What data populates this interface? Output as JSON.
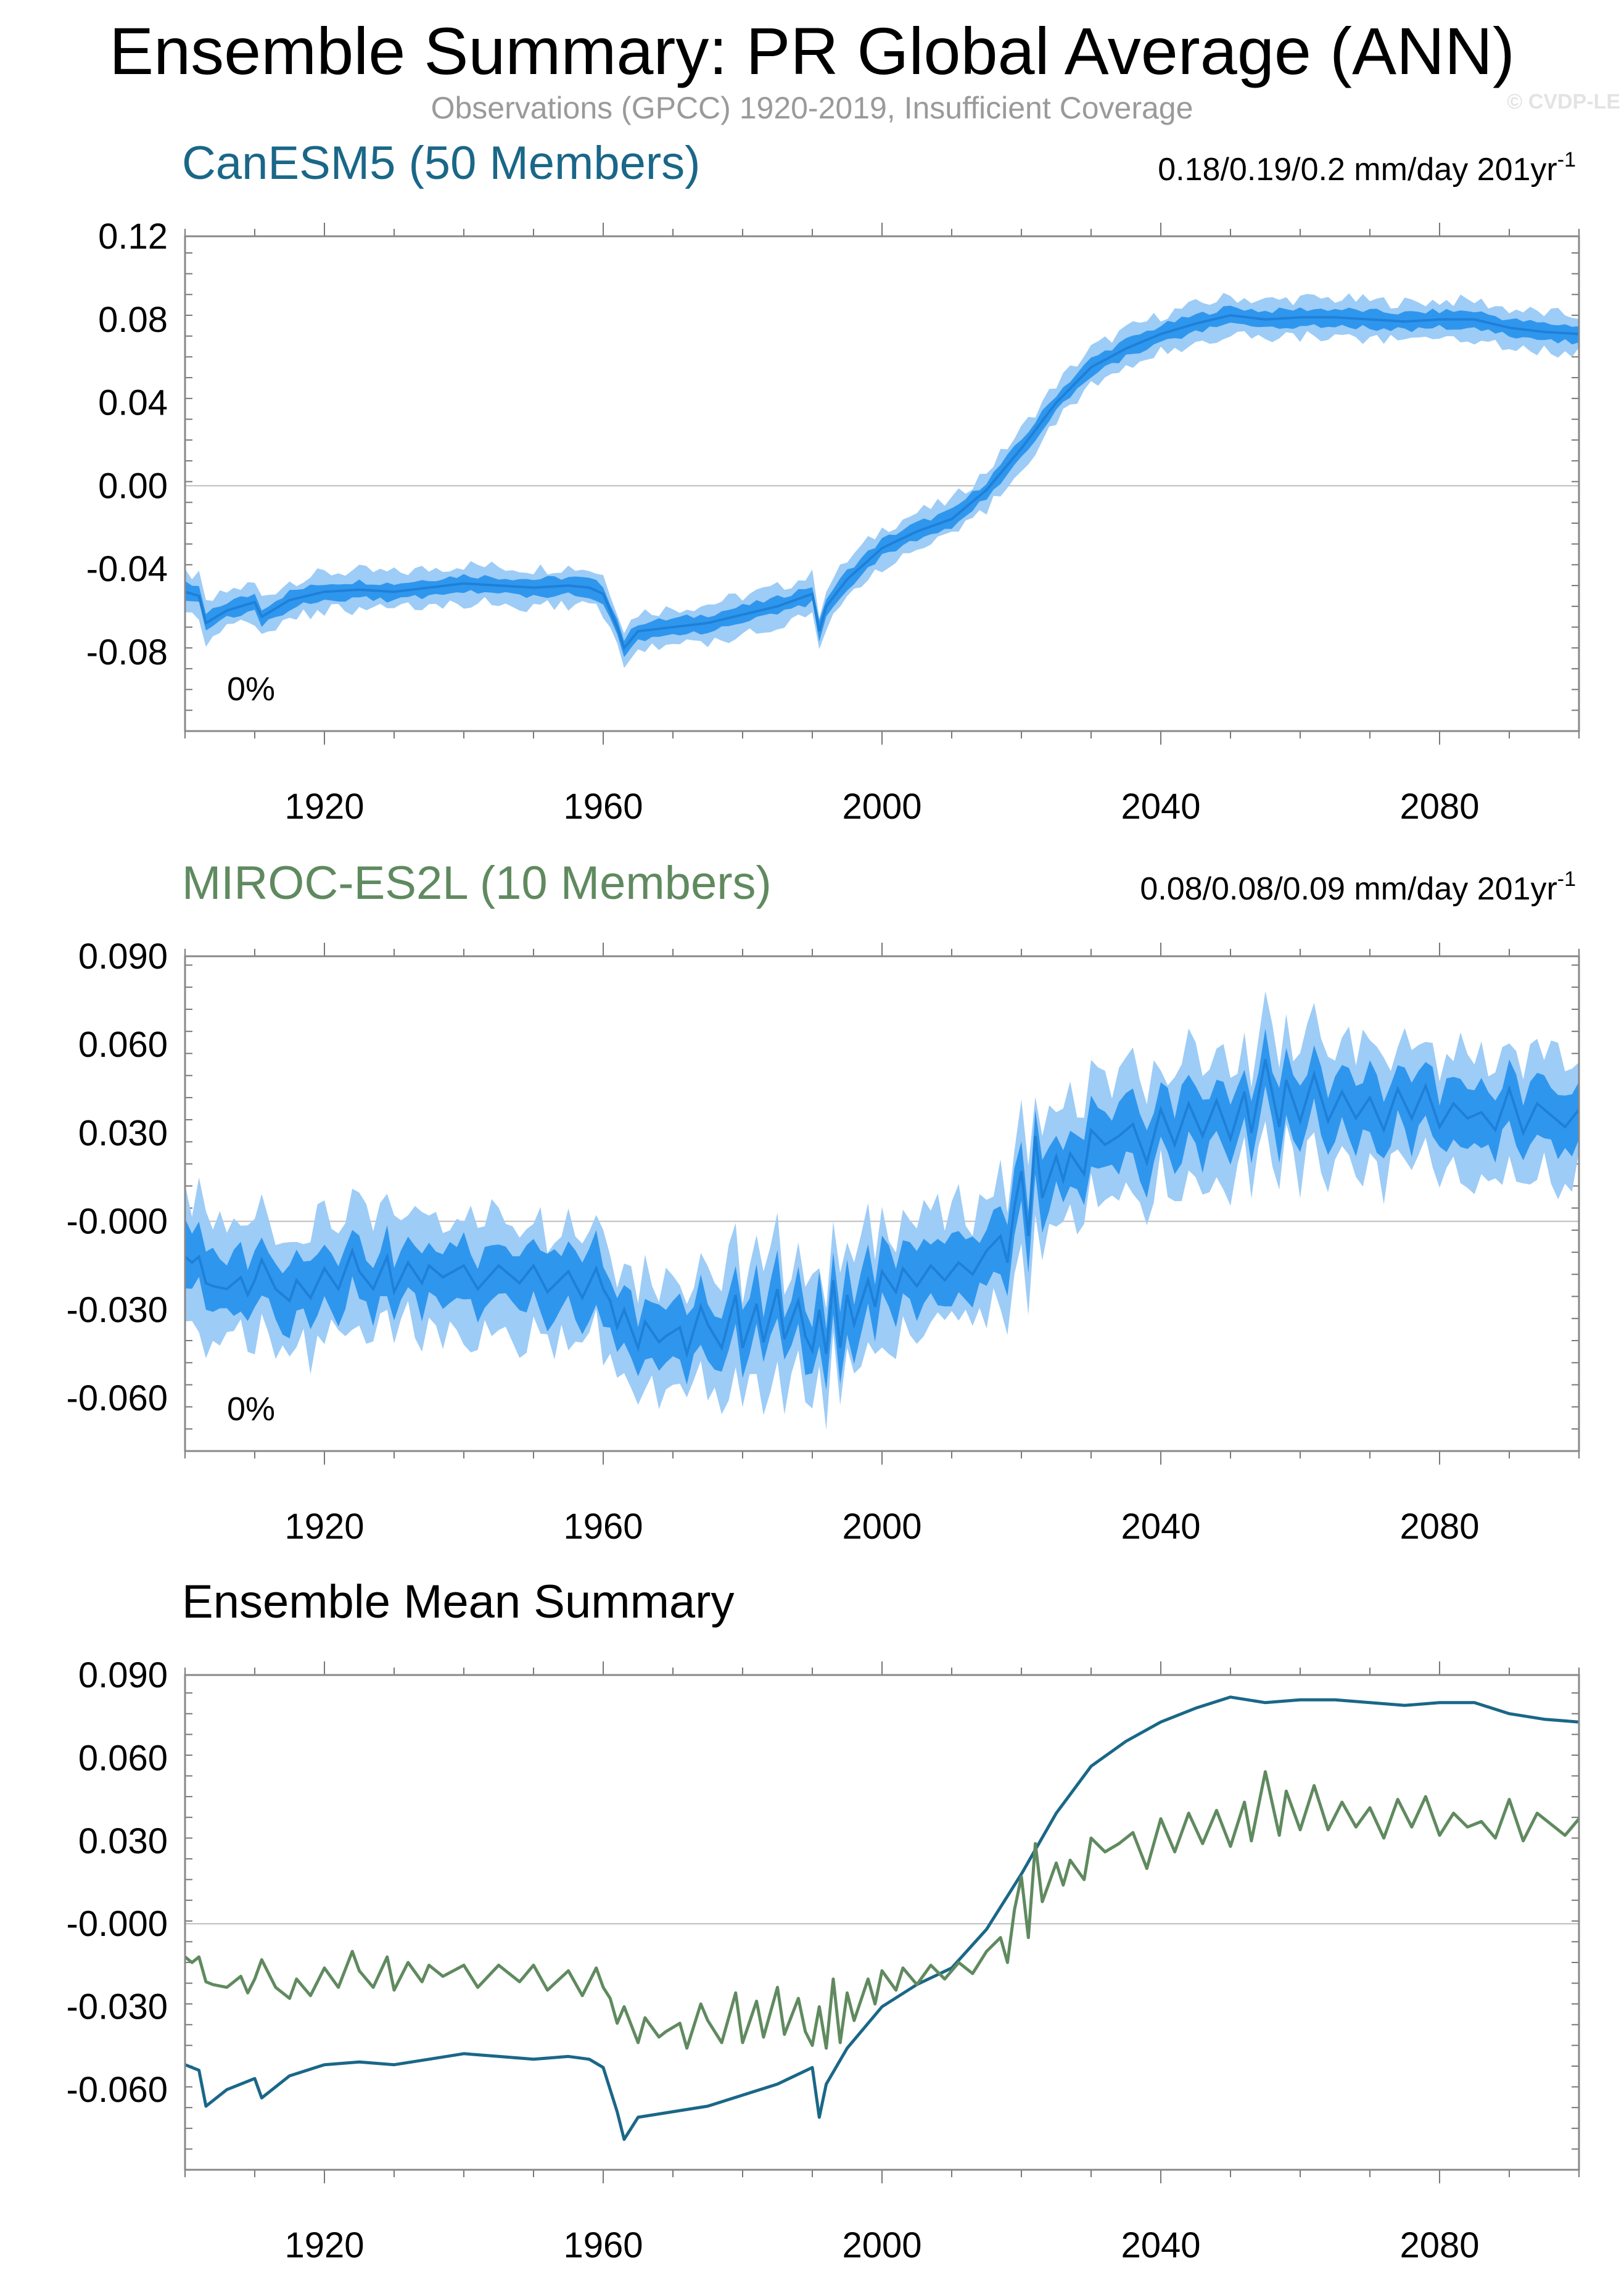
{
  "figure": {
    "title": "Ensemble Summary: PR Global Average (ANN)",
    "subtitle": "Observations (GPCC) 1920-2019, Insufficient Coverage",
    "copyright": "© CVDP-LE"
  },
  "colors": {
    "canesm": "#1a6788",
    "miroc": "#5f8a5f",
    "band_outer": "#9dccf6",
    "band_inner": "#2f96ee",
    "mean_line": "#1e80d8",
    "zero_line": "#bdbdbd",
    "frame": "#888888"
  },
  "chart_data": [
    {
      "type": "area",
      "title": "CanESM5 (50 Members)",
      "title_color": "#1a6788",
      "trend_prefix": "0.18/0.19/0.2 mm/day 201yr",
      "trend_sup": "-1",
      "percent_label": "0%",
      "xlim": [
        1900,
        2100
      ],
      "ylim": [
        -0.118,
        0.12
      ],
      "yticks": [
        -0.08,
        -0.04,
        0.0,
        0.04,
        0.08,
        0.12
      ],
      "ytick_labels": [
        "-0.08",
        "-0.04",
        "0.00",
        "0.04",
        "0.08",
        "0.12"
      ],
      "xticks": [
        1920,
        1960,
        2000,
        2040,
        2080
      ],
      "xtick_labels": [
        "1920",
        "1960",
        "2000",
        "2040",
        "2080"
      ],
      "series": [
        {
          "name": "ensemble mean",
          "x": [
            1900,
            1902,
            1903,
            1906,
            1910,
            1911,
            1915,
            1920,
            1925,
            1930,
            1935,
            1940,
            1945,
            1950,
            1955,
            1958,
            1960,
            1962,
            1963,
            1965,
            1970,
            1975,
            1980,
            1985,
            1990,
            1991,
            1992,
            1995,
            2000,
            2005,
            2010,
            2015,
            2020,
            2025,
            2030,
            2035,
            2040,
            2045,
            2050,
            2055,
            2060,
            2065,
            2070,
            2075,
            2080,
            2085,
            2090,
            2095,
            2100
          ],
          "values": [
            -0.051,
            -0.053,
            -0.066,
            -0.06,
            -0.056,
            -0.063,
            -0.055,
            -0.051,
            -0.05,
            -0.051,
            -0.049,
            -0.047,
            -0.048,
            -0.049,
            -0.048,
            -0.049,
            -0.052,
            -0.068,
            -0.078,
            -0.07,
            -0.068,
            -0.066,
            -0.062,
            -0.058,
            -0.052,
            -0.07,
            -0.058,
            -0.045,
            -0.03,
            -0.022,
            -0.016,
            -0.002,
            0.018,
            0.04,
            0.057,
            0.066,
            0.073,
            0.078,
            0.082,
            0.08,
            0.081,
            0.081,
            0.08,
            0.079,
            0.08,
            0.08,
            0.076,
            0.074,
            0.073
          ]
        },
        {
          "name": "10-90% spread",
          "values_half_width": 0.004
        },
        {
          "name": "min-max spread",
          "values_half_width": 0.009
        }
      ]
    },
    {
      "type": "area",
      "title": "MIROC-ES2L (10 Members)",
      "title_color": "#5f8a5f",
      "trend_prefix": "0.08/0.08/0.09 mm/day 201yr",
      "trend_sup": "-1",
      "percent_label": "0%",
      "xlim": [
        1900,
        2100
      ],
      "ylim": [
        -0.078,
        0.09
      ],
      "yticks": [
        -0.06,
        -0.03,
        0.0,
        0.03,
        0.06,
        0.09
      ],
      "ytick_labels": [
        "-0.060",
        "-0.030",
        "-0.000",
        "0.030",
        "0.060",
        "0.090"
      ],
      "xticks": [
        1920,
        1960,
        2000,
        2040,
        2080
      ],
      "xtick_labels": [
        "1920",
        "1960",
        "2000",
        "2040",
        "2080"
      ],
      "series": [
        {
          "name": "ensemble mean",
          "x": [
            1900,
            1901,
            1902,
            1903,
            1904,
            1906,
            1908,
            1909,
            1910,
            1911,
            1913,
            1915,
            1916,
            1918,
            1920,
            1922,
            1924,
            1925,
            1927,
            1929,
            1930,
            1932,
            1934,
            1935,
            1937,
            1940,
            1942,
            1945,
            1948,
            1950,
            1952,
            1955,
            1957,
            1959,
            1960,
            1961,
            1962,
            1963,
            1965,
            1966,
            1968,
            1969,
            1971,
            1972,
            1974,
            1975,
            1977,
            1979,
            1980,
            1982,
            1983,
            1985,
            1986,
            1988,
            1989,
            1990,
            1991,
            1992,
            1993,
            1994,
            1995,
            1996,
            1998,
            1999,
            2000,
            2002,
            2003,
            2005,
            2007,
            2009,
            2011,
            2013,
            2015,
            2017,
            2018,
            2019,
            2020,
            2021,
            2022,
            2023,
            2025,
            2026,
            2027,
            2029,
            2030,
            2032,
            2034,
            2036,
            2038,
            2040,
            2042,
            2044,
            2046,
            2048,
            2050,
            2052,
            2053,
            2055,
            2057,
            2058,
            2060,
            2062,
            2064,
            2066,
            2068,
            2070,
            2072,
            2074,
            2076,
            2078,
            2080,
            2082,
            2084,
            2086,
            2088,
            2090,
            2092,
            2094,
            2096,
            2098,
            2100
          ],
          "values": [
            -0.012,
            -0.014,
            -0.012,
            -0.021,
            -0.022,
            -0.023,
            -0.019,
            -0.025,
            -0.02,
            -0.013,
            -0.023,
            -0.027,
            -0.02,
            -0.026,
            -0.016,
            -0.023,
            -0.01,
            -0.017,
            -0.023,
            -0.012,
            -0.024,
            -0.014,
            -0.021,
            -0.015,
            -0.019,
            -0.015,
            -0.023,
            -0.015,
            -0.021,
            -0.015,
            -0.024,
            -0.017,
            -0.026,
            -0.016,
            -0.023,
            -0.027,
            -0.036,
            -0.03,
            -0.043,
            -0.034,
            -0.041,
            -0.039,
            -0.036,
            -0.045,
            -0.029,
            -0.035,
            -0.043,
            -0.025,
            -0.043,
            -0.028,
            -0.041,
            -0.023,
            -0.04,
            -0.027,
            -0.039,
            -0.044,
            -0.03,
            -0.045,
            -0.02,
            -0.043,
            -0.025,
            -0.035,
            -0.02,
            -0.029,
            -0.017,
            -0.024,
            -0.016,
            -0.022,
            -0.015,
            -0.02,
            -0.014,
            -0.018,
            -0.01,
            -0.005,
            -0.014,
            0.005,
            0.017,
            -0.005,
            0.029,
            0.008,
            0.022,
            0.014,
            0.023,
            0.016,
            0.031,
            0.026,
            0.029,
            0.033,
            0.02,
            0.038,
            0.026,
            0.04,
            0.029,
            0.041,
            0.028,
            0.044,
            0.03,
            0.055,
            0.032,
            0.048,
            0.034,
            0.05,
            0.034,
            0.044,
            0.035,
            0.042,
            0.031,
            0.045,
            0.035,
            0.046,
            0.032,
            0.04,
            0.035,
            0.037,
            0.031,
            0.045,
            0.03,
            0.04,
            0.036,
            0.032,
            0.038
          ]
        },
        {
          "name": "10-90% spread",
          "values_half_width": 0.01
        },
        {
          "name": "min-max spread",
          "values_half_width": 0.02
        }
      ]
    },
    {
      "type": "line",
      "title": "Ensemble Mean Summary",
      "title_color": "#000000",
      "xlim": [
        1900,
        2100
      ],
      "ylim": [
        -0.089,
        0.09
      ],
      "yticks": [
        -0.06,
        -0.03,
        0.0,
        0.03,
        0.06,
        0.09
      ],
      "ytick_labels": [
        "-0.060",
        "-0.030",
        "-0.000",
        "0.030",
        "0.060",
        "0.090"
      ],
      "xticks": [
        1920,
        1960,
        2000,
        2040,
        2080
      ],
      "xtick_labels": [
        "1920",
        "1960",
        "2000",
        "2040",
        "2080"
      ],
      "series": [
        {
          "name": "CanESM5 ensemble mean",
          "color": "#1a6788",
          "source_panel": 0
        },
        {
          "name": "MIROC-ES2L ensemble mean",
          "color": "#5f8a5f",
          "source_panel": 1
        }
      ]
    }
  ]
}
